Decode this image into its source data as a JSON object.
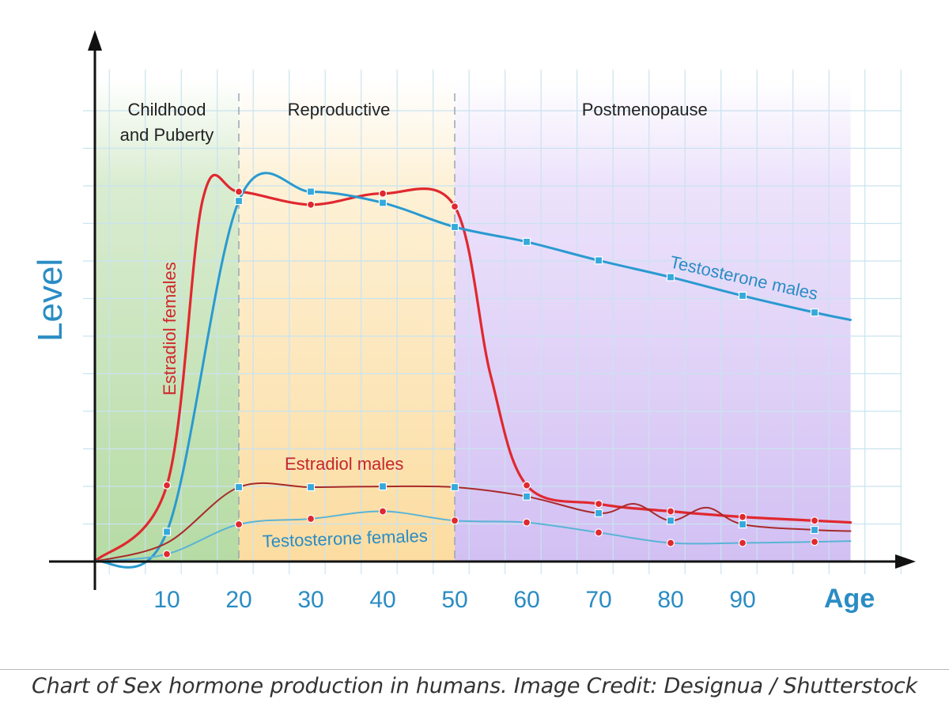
{
  "caption": "Chart of Sex hormone production in humans. Image Credit: Designua / Shutterstock",
  "chart_data": {
    "type": "line",
    "xlabel": "Age",
    "ylabel": "Level",
    "xlim": [
      -1,
      115
    ],
    "ylim": [
      0,
      10
    ],
    "x_ticks": [
      10,
      20,
      30,
      40,
      50,
      60,
      70,
      80,
      90
    ],
    "grid": true,
    "regions": [
      {
        "label": "Childhood\nand Puberty",
        "start": 0,
        "end": 20,
        "color": "#bfe0b0"
      },
      {
        "label": "Reproductive",
        "start": 20,
        "end": 50,
        "color": "#fde6b8"
      },
      {
        "label": "Postmenopause",
        "start": 50,
        "end": 105,
        "color": "#dccdf5"
      }
    ],
    "series": [
      {
        "name": "Estradiol females",
        "color": "#e0282f",
        "marker": "circle",
        "points": [
          [
            0,
            0
          ],
          [
            10,
            2.05
          ],
          [
            15,
            9.75
          ],
          [
            20,
            9.95
          ],
          [
            30,
            9.6
          ],
          [
            40,
            9.9
          ],
          [
            50,
            9.55
          ],
          [
            55,
            5.0
          ],
          [
            60,
            2.05
          ],
          [
            70,
            1.55
          ],
          [
            80,
            1.35
          ],
          [
            90,
            1.2
          ],
          [
            100,
            1.1
          ],
          [
            105,
            1.05
          ]
        ],
        "markers_x": [
          10,
          20,
          30,
          40,
          50,
          60,
          70,
          80,
          90,
          100
        ]
      },
      {
        "name": "Testosterone males",
        "color": "#2a9ad0",
        "marker": "square",
        "points": [
          [
            0,
            0
          ],
          [
            10,
            0.8
          ],
          [
            20,
            9.7
          ],
          [
            30,
            9.95
          ],
          [
            40,
            9.65
          ],
          [
            50,
            9.0
          ],
          [
            60,
            8.6
          ],
          [
            70,
            8.1
          ],
          [
            80,
            7.65
          ],
          [
            90,
            7.15
          ],
          [
            100,
            6.7
          ],
          [
            105,
            6.5
          ]
        ],
        "markers_x": [
          10,
          20,
          30,
          40,
          50,
          60,
          70,
          80,
          90,
          100
        ]
      },
      {
        "name": "Estradiol males",
        "color": "#a82a2a",
        "marker": "square",
        "points": [
          [
            0,
            0
          ],
          [
            10,
            0.5
          ],
          [
            20,
            2.0
          ],
          [
            30,
            2.0
          ],
          [
            40,
            2.02
          ],
          [
            50,
            2.0
          ],
          [
            60,
            1.75
          ],
          [
            70,
            1.3
          ],
          [
            75,
            1.55
          ],
          [
            80,
            1.1
          ],
          [
            85,
            1.45
          ],
          [
            90,
            1.0
          ],
          [
            100,
            0.85
          ],
          [
            105,
            0.82
          ]
        ],
        "markers_x": [
          20,
          30,
          40,
          50,
          60,
          70,
          80,
          90,
          100
        ]
      },
      {
        "name": "Testosterone females",
        "color": "#5ab4d6",
        "marker": "circle",
        "points": [
          [
            0,
            0
          ],
          [
            10,
            0.2
          ],
          [
            20,
            1.0
          ],
          [
            30,
            1.15
          ],
          [
            40,
            1.35
          ],
          [
            50,
            1.1
          ],
          [
            60,
            1.05
          ],
          [
            70,
            0.78
          ],
          [
            80,
            0.5
          ],
          [
            90,
            0.5
          ],
          [
            100,
            0.53
          ],
          [
            105,
            0.55
          ]
        ],
        "markers_x": [
          10,
          20,
          30,
          40,
          50,
          60,
          70,
          80,
          90,
          100
        ]
      }
    ]
  }
}
